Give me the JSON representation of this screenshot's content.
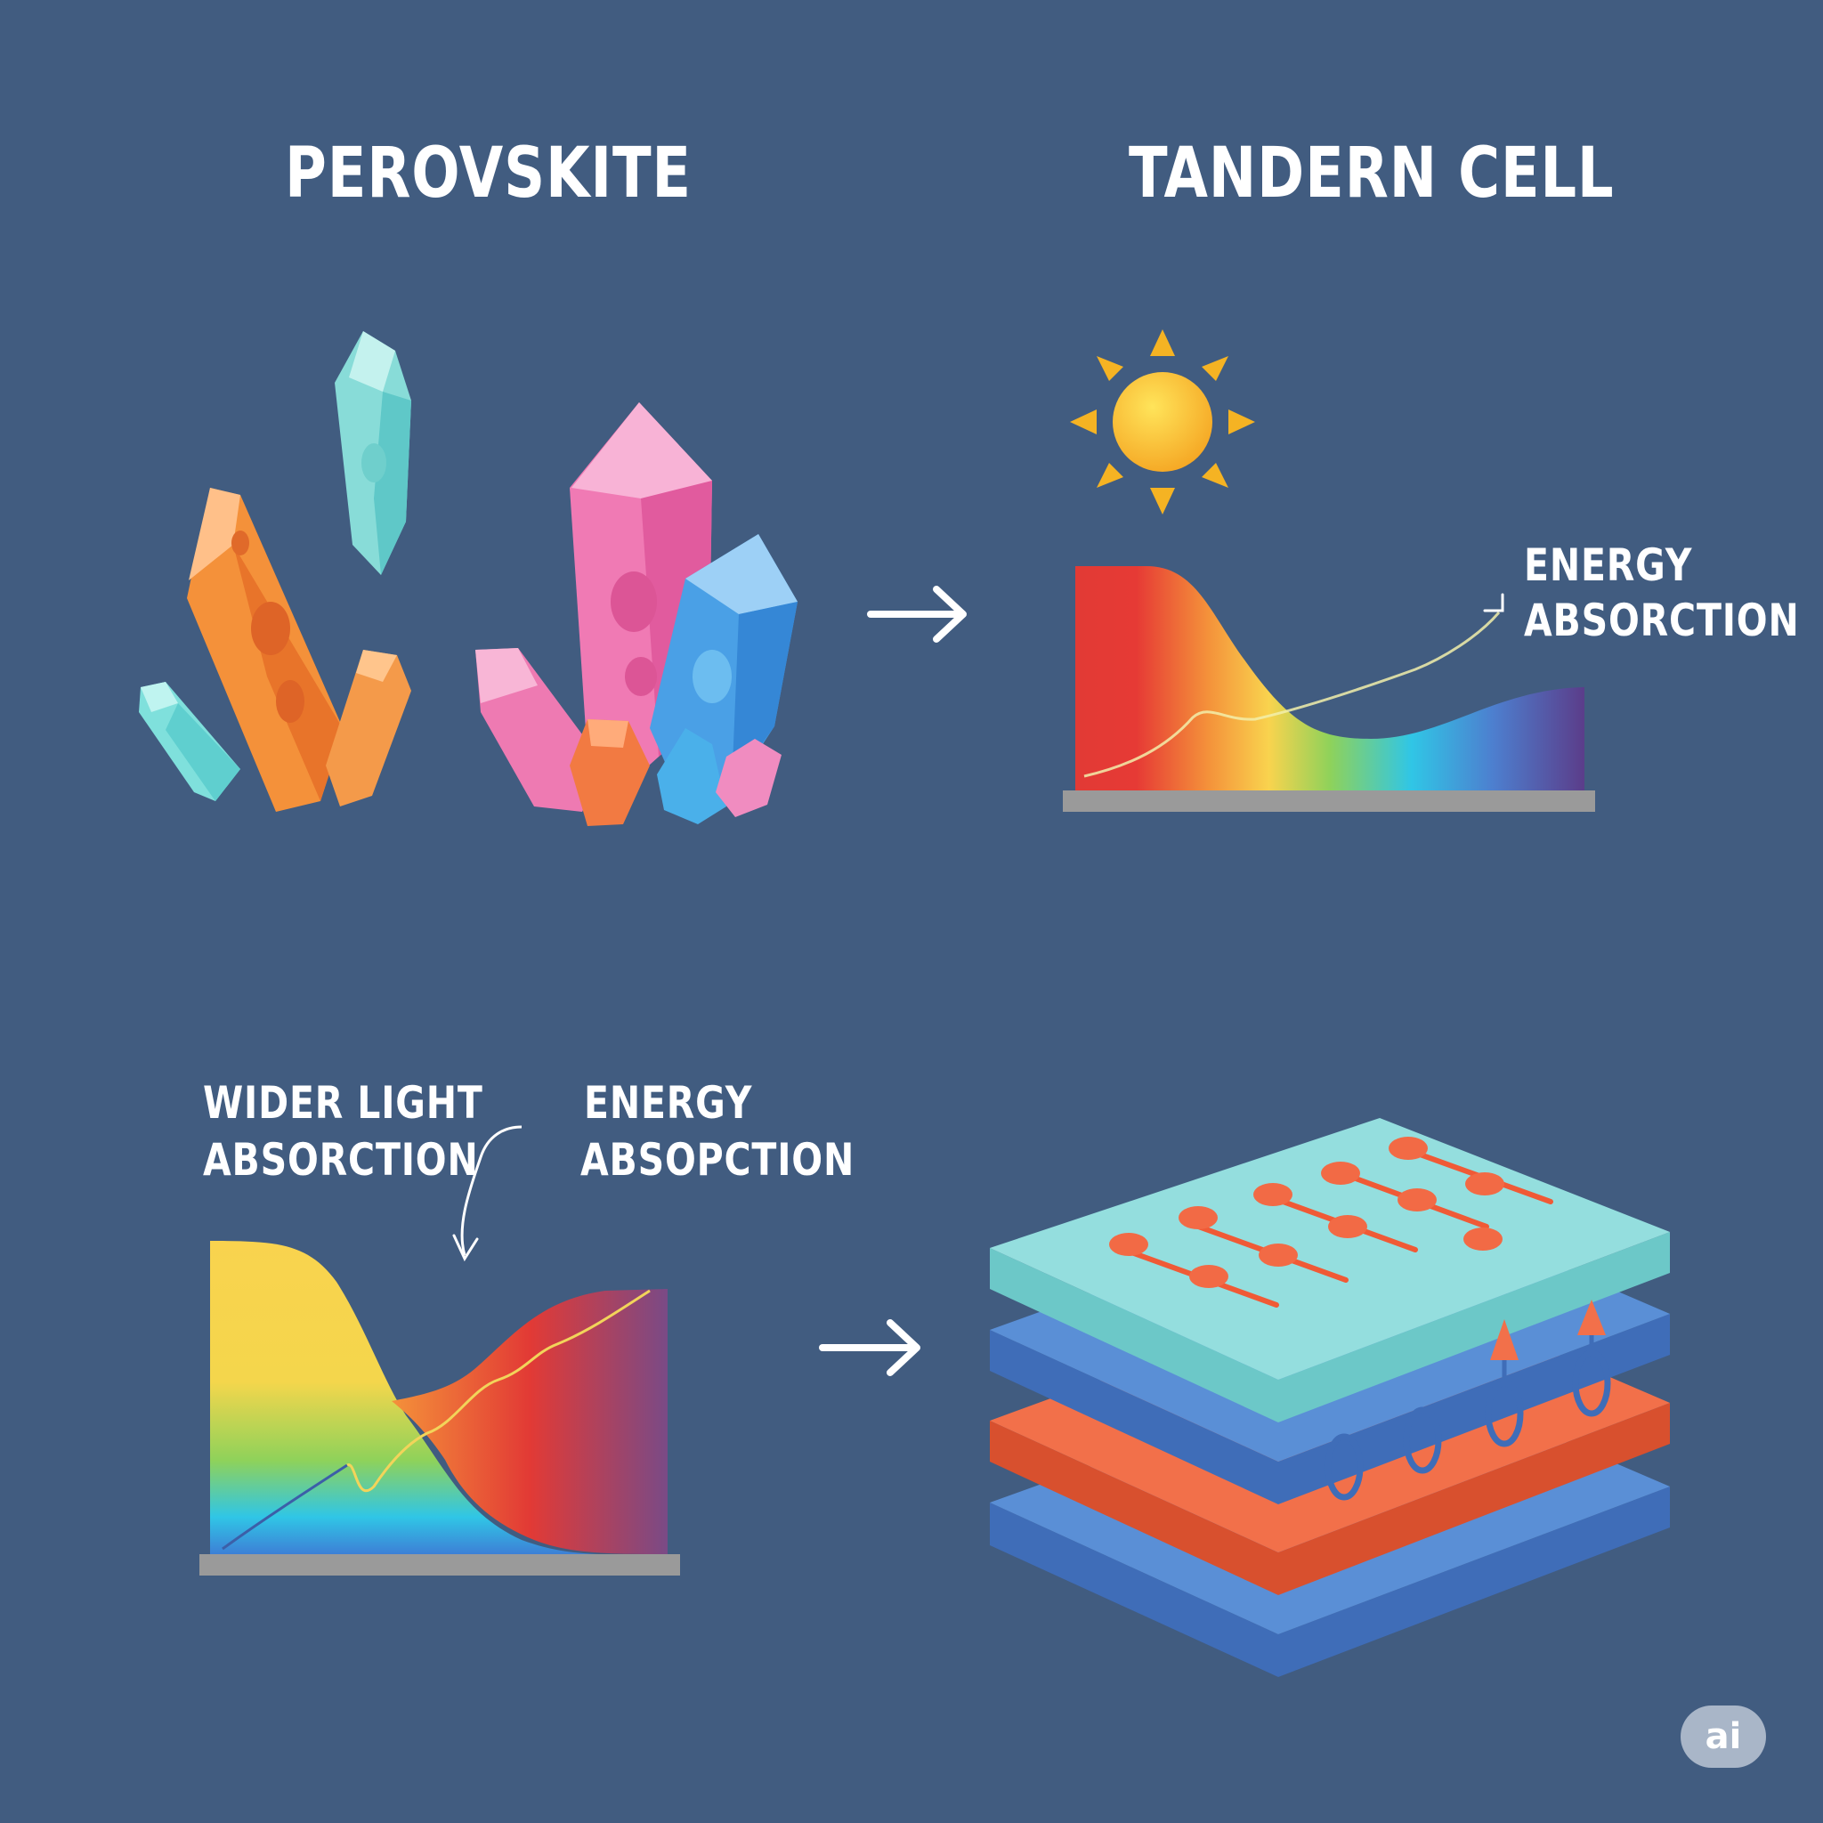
{
  "titles": {
    "perovskite": "PEROVSKITE",
    "tandem": "TANDERN CELL"
  },
  "labels": {
    "energy_absorction_1": "ENERGY",
    "energy_absorction_2": "ABSORCTION",
    "wider_1": "WIDER LIGHT",
    "wider_2": "ABSORCTION",
    "energy_absopction_1": "ENERGY",
    "energy_absopction_2": "ABSOPCTION"
  },
  "badge": "ai",
  "icons": [
    "sun-icon",
    "arrow-right-icon",
    "crystal-cluster-icon",
    "stacked-layers-icon"
  ],
  "colors": {
    "background": "#415c80",
    "red": "#e23a35",
    "orange": "#f4913a",
    "yellow": "#f9d34e",
    "green": "#8fd25a",
    "cyan": "#30c6e6",
    "violet": "#5b3d8a",
    "layer_teal": "#8fdcdc",
    "layer_blue": "#5a8fd6",
    "layer_orange": "#f2704a"
  }
}
